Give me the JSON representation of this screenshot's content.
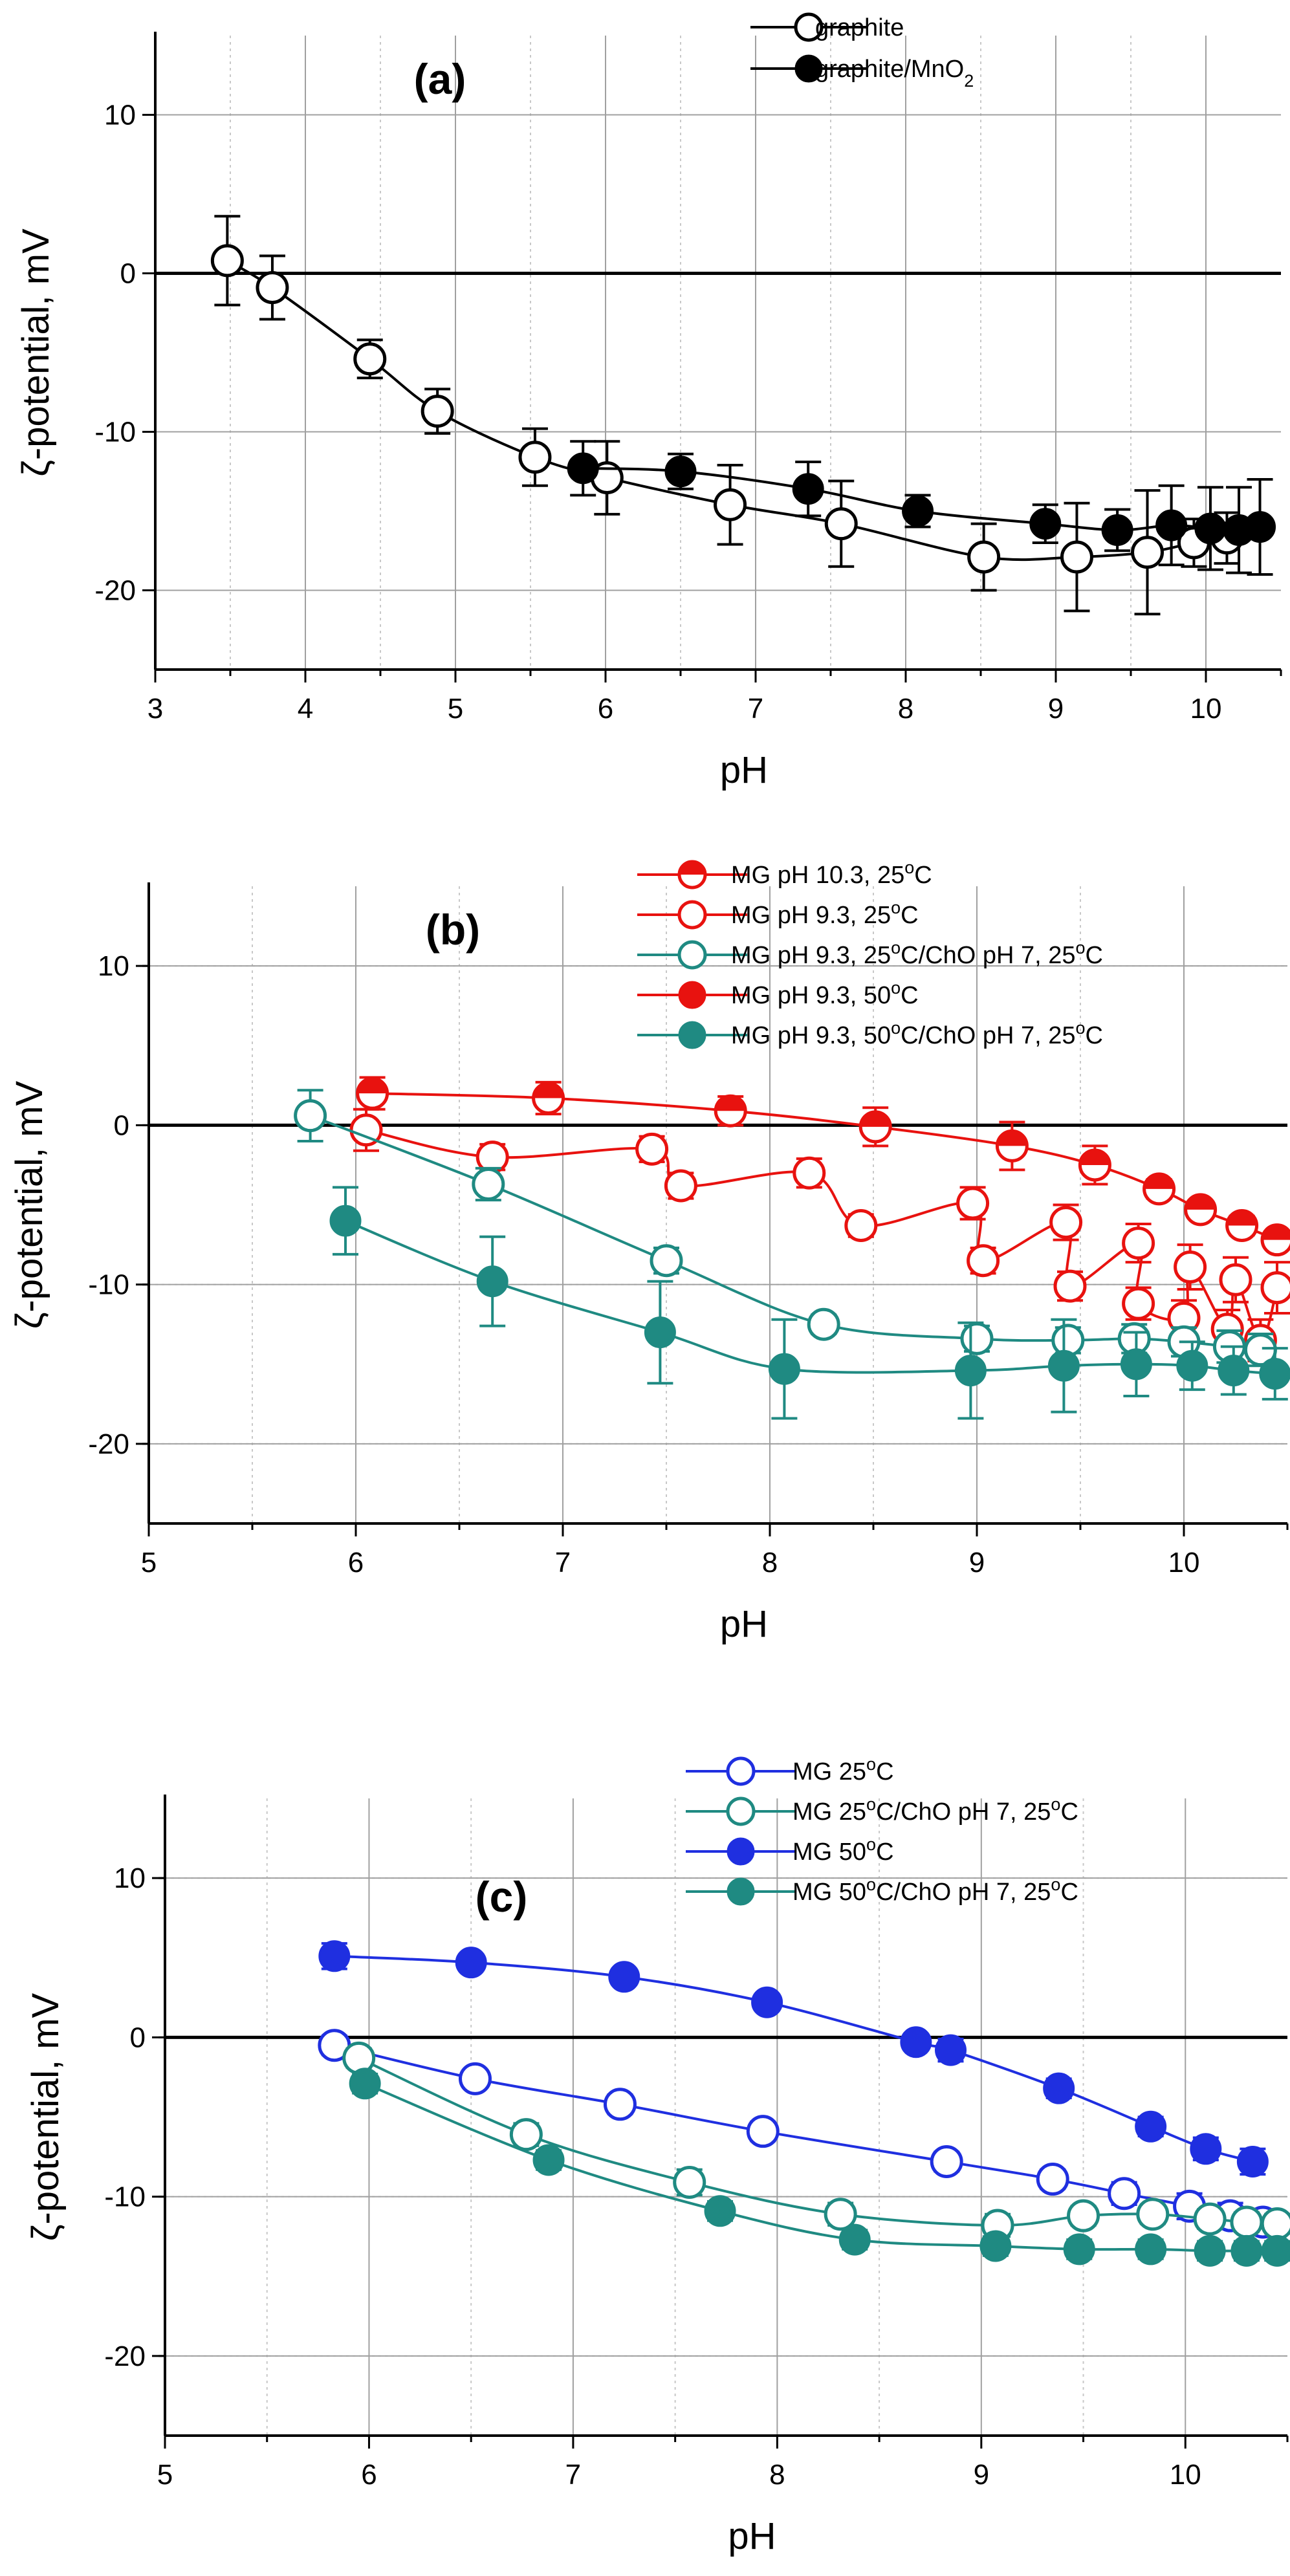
{
  "chart_data": [
    {
      "id": "a",
      "type": "scatter",
      "title": "(a)",
      "xlabel": "pH",
      "ylabel": "ζ-potential, mV",
      "xlim": [
        3,
        10.5
      ],
      "ylim": [
        -25,
        15
      ],
      "xticks": [
        3,
        4,
        5,
        6,
        7,
        8,
        9,
        10
      ],
      "xtick_labels": [
        "3",
        "4",
        "5",
        "6",
        "7",
        "8",
        "9",
        "10"
      ],
      "yticks": [
        -20,
        -10,
        0,
        10
      ],
      "ytick_labels": [
        "-20",
        "-10",
        "0",
        "10"
      ],
      "grid": true,
      "legend_position": "top-center",
      "series": [
        {
          "name": "graphite",
          "legend_main": "graphite",
          "legend_sub": "",
          "color": "#000000",
          "fill": "open",
          "points": [
            {
              "x": 3.48,
              "y": 0.8,
              "err": 2.8
            },
            {
              "x": 3.78,
              "y": -0.9,
              "err": 2.0
            },
            {
              "x": 4.43,
              "y": -5.4,
              "err": 1.2
            },
            {
              "x": 4.88,
              "y": -8.7,
              "err": 1.4
            },
            {
              "x": 5.53,
              "y": -11.6,
              "err": 1.8
            },
            {
              "x": 6.01,
              "y": -12.9,
              "err": 2.3
            },
            {
              "x": 6.83,
              "y": -14.6,
              "err": 2.5
            },
            {
              "x": 7.57,
              "y": -15.8,
              "err": 2.7
            },
            {
              "x": 8.52,
              "y": -17.9,
              "err": 2.1
            },
            {
              "x": 9.14,
              "y": -17.9,
              "err": 3.4
            },
            {
              "x": 9.61,
              "y": -17.6,
              "err": 3.9
            },
            {
              "x": 9.92,
              "y": -17.0,
              "err": 1.5
            },
            {
              "x": 10.14,
              "y": -16.7,
              "err": 1.6
            }
          ]
        },
        {
          "name": "graphite/MnO2",
          "legend_main": "graphite/MnO",
          "legend_sub": "2",
          "color": "#000000",
          "fill": "solid",
          "points": [
            {
              "x": 5.85,
              "y": -12.3,
              "err": 1.7
            },
            {
              "x": 6.5,
              "y": -12.5,
              "err": 1.1
            },
            {
              "x": 7.35,
              "y": -13.6,
              "err": 1.7
            },
            {
              "x": 8.08,
              "y": -15.0,
              "err": 1.0
            },
            {
              "x": 8.93,
              "y": -15.8,
              "err": 1.2
            },
            {
              "x": 9.41,
              "y": -16.2,
              "err": 1.3
            },
            {
              "x": 9.77,
              "y": -15.9,
              "err": 2.5
            },
            {
              "x": 10.03,
              "y": -16.1,
              "err": 2.6
            },
            {
              "x": 10.22,
              "y": -16.2,
              "err": 2.7
            },
            {
              "x": 10.36,
              "y": -16.0,
              "err": 3.0
            }
          ]
        }
      ]
    },
    {
      "id": "b",
      "type": "scatter",
      "title": "(b)",
      "xlabel": "pH",
      "ylabel": "ζ-potential, mV",
      "xlim": [
        5,
        10.5
      ],
      "ylim": [
        -25,
        15
      ],
      "xticks": [
        5,
        6,
        7,
        8,
        9,
        10
      ],
      "xtick_labels": [
        "5",
        "6",
        "7",
        "8",
        "9",
        "10"
      ],
      "yticks": [
        -20,
        -10,
        0,
        10
      ],
      "ytick_labels": [
        "-20",
        "-10",
        "0",
        "10"
      ],
      "grid": true,
      "legend_position": "top-center",
      "series": [
        {
          "name": "MG pH 10.3, 25°C",
          "legend_main": "MG pH 10.3, 25",
          "legend_sup": "o",
          "legend_tail": "C",
          "color": "#e8120f",
          "fill": "half",
          "points": [
            {
              "x": 6.08,
              "y": 2.0,
              "err": 1.0
            },
            {
              "x": 6.93,
              "y": 1.7,
              "err": 1.0
            },
            {
              "x": 7.81,
              "y": 0.9,
              "err": 0.9
            },
            {
              "x": 8.51,
              "y": -0.1,
              "err": 1.2
            },
            {
              "x": 9.17,
              "y": -1.3,
              "err": 1.5
            },
            {
              "x": 9.57,
              "y": -2.5,
              "err": 1.2
            },
            {
              "x": 9.88,
              "y": -4.0,
              "err": 0.6
            },
            {
              "x": 10.08,
              "y": -5.3,
              "err": 0.5
            },
            {
              "x": 10.28,
              "y": -6.3,
              "err": 0.6
            },
            {
              "x": 10.45,
              "y": -7.2,
              "err": 0.5
            }
          ]
        },
        {
          "name": "MG pH 9.3, 25°C",
          "legend_main": "MG pH 9.3, 25",
          "legend_sup": "o",
          "legend_tail": "C",
          "color": "#e8120f",
          "fill": "open",
          "points": [
            {
              "x": 6.05,
              "y": -0.3,
              "err": 1.3
            },
            {
              "x": 6.66,
              "y": -2.0,
              "err": 0.8
            },
            {
              "x": 7.43,
              "y": -1.5,
              "err": 0.8
            },
            {
              "x": 8.19,
              "y": -3.0,
              "err": 0.9
            },
            {
              "x": 8.98,
              "y": -4.9,
              "err": 1.0
            },
            {
              "x": 9.43,
              "y": -6.1,
              "err": 1.1
            },
            {
              "x": 9.78,
              "y": -7.4,
              "err": 1.2
            },
            {
              "x": 10.03,
              "y": -8.9,
              "err": 1.4
            },
            {
              "x": 10.25,
              "y": -9.7,
              "err": 1.4
            },
            {
              "x": 10.45,
              "y": -10.2,
              "err": 1.6
            },
            {
              "x": 7.57,
              "y": -3.8,
              "err": 0.8
            },
            {
              "x": 8.44,
              "y": -6.3,
              "err": 0.7
            },
            {
              "x": 9.03,
              "y": -8.5,
              "err": 0.8
            },
            {
              "x": 9.45,
              "y": -10.1,
              "err": 0.9
            },
            {
              "x": 9.78,
              "y": -11.2,
              "err": 1.0
            },
            {
              "x": 10.0,
              "y": -12.1,
              "err": 1.1
            },
            {
              "x": 10.21,
              "y": -12.8,
              "err": 1.2
            },
            {
              "x": 10.37,
              "y": -13.5,
              "err": 1.3
            }
          ]
        },
        {
          "name": "MG pH 9.3, 25°C/ChO pH 7, 25°C",
          "legend_main": "MG pH 9.3, 25",
          "legend_sup": "o",
          "legend_tail": "C/ChO pH 7, 25",
          "legend_sup2": "o",
          "legend_tail2": "C",
          "color": "#1f8a82",
          "fill": "open",
          "points": [
            {
              "x": 5.78,
              "y": 0.6,
              "err": 1.6
            },
            {
              "x": 6.64,
              "y": -3.7,
              "err": 1.0
            },
            {
              "x": 7.5,
              "y": -8.5,
              "err": 0.8
            },
            {
              "x": 8.26,
              "y": -12.5,
              "err": 0.6
            },
            {
              "x": 9.0,
              "y": -13.4,
              "err": 0.8
            },
            {
              "x": 9.44,
              "y": -13.5,
              "err": 0.8
            },
            {
              "x": 9.76,
              "y": -13.4,
              "err": 0.9
            },
            {
              "x": 10.0,
              "y": -13.6,
              "err": 0.9
            },
            {
              "x": 10.22,
              "y": -13.9,
              "err": 1.0
            },
            {
              "x": 10.37,
              "y": -14.1,
              "err": 1.0
            }
          ]
        },
        {
          "name": "MG pH 9.3, 50°C",
          "legend_main": "MG pH 9.3, 50",
          "legend_sup": "o",
          "legend_tail": "C",
          "color": "#e8120f",
          "fill": "solid",
          "points": []
        },
        {
          "name": "MG pH 9.3, 50°C/ChO pH 7, 25°C",
          "legend_main": "MG pH 9.3, 50",
          "legend_sup": "o",
          "legend_tail": "C/ChO pH 7, 25",
          "legend_sup2": "o",
          "legend_tail2": "C",
          "color": "#1f8a82",
          "fill": "solid",
          "points": [
            {
              "x": 5.95,
              "y": -6.0,
              "err": 2.1
            },
            {
              "x": 6.66,
              "y": -9.8,
              "err": 2.8
            },
            {
              "x": 7.47,
              "y": -13.0,
              "err": 3.2
            },
            {
              "x": 8.07,
              "y": -15.3,
              "err": 3.1
            },
            {
              "x": 8.97,
              "y": -15.4,
              "err": 3.0
            },
            {
              "x": 9.42,
              "y": -15.1,
              "err": 2.9
            },
            {
              "x": 9.77,
              "y": -15.0,
              "err": 2.0
            },
            {
              "x": 10.04,
              "y": -15.1,
              "err": 1.5
            },
            {
              "x": 10.24,
              "y": -15.4,
              "err": 1.5
            },
            {
              "x": 10.44,
              "y": -15.6,
              "err": 1.6
            }
          ]
        }
      ]
    },
    {
      "id": "c",
      "type": "scatter",
      "title": "(c)",
      "xlabel": "pH",
      "ylabel": "ζ-potential, mV",
      "xlim": [
        5,
        10.5
      ],
      "ylim": [
        -25,
        15
      ],
      "xticks": [
        5,
        6,
        7,
        8,
        9,
        10
      ],
      "xtick_labels": [
        "5",
        "6",
        "7",
        "8",
        "9",
        "10"
      ],
      "yticks": [
        -20,
        -10,
        0,
        10
      ],
      "ytick_labels": [
        "-20",
        "-10",
        "0",
        "10"
      ],
      "grid": true,
      "legend_position": "top-center",
      "series": [
        {
          "name": "MG 25°C",
          "legend_main": "MG 25",
          "legend_sup": "o",
          "legend_tail": "C",
          "color": "#1f2fe0",
          "fill": "open",
          "points": [
            {
              "x": 5.83,
              "y": -0.5,
              "err": 0.6
            },
            {
              "x": 6.52,
              "y": -2.6,
              "err": 0.5
            },
            {
              "x": 7.23,
              "y": -4.2,
              "err": 0.6
            },
            {
              "x": 7.93,
              "y": -5.9,
              "err": 0.6
            },
            {
              "x": 8.83,
              "y": -7.8,
              "err": 0.6
            },
            {
              "x": 9.35,
              "y": -8.9,
              "err": 0.6
            },
            {
              "x": 9.7,
              "y": -9.8,
              "err": 0.7
            },
            {
              "x": 10.02,
              "y": -10.6,
              "err": 0.8
            },
            {
              "x": 10.22,
              "y": -11.2,
              "err": 0.8
            },
            {
              "x": 10.38,
              "y": -11.6,
              "err": 0.8
            }
          ]
        },
        {
          "name": "MG 25°C/ChO pH 7, 25°C",
          "legend_main": "MG 25",
          "legend_sup": "o",
          "legend_tail": "C/ChO pH 7, 25",
          "legend_sup2": "o",
          "legend_tail2": "C",
          "color": "#1f8a82",
          "fill": "open",
          "points": [
            {
              "x": 5.95,
              "y": -1.3,
              "err": 0.6
            },
            {
              "x": 6.77,
              "y": -6.1,
              "err": 0.7
            },
            {
              "x": 7.57,
              "y": -9.1,
              "err": 0.8
            },
            {
              "x": 8.31,
              "y": -11.1,
              "err": 0.7
            },
            {
              "x": 9.08,
              "y": -11.8,
              "err": 0.7
            },
            {
              "x": 9.5,
              "y": -11.2,
              "err": 0.6
            },
            {
              "x": 9.84,
              "y": -11.1,
              "err": 0.6
            },
            {
              "x": 10.12,
              "y": -11.4,
              "err": 0.6
            },
            {
              "x": 10.3,
              "y": -11.6,
              "err": 0.6
            },
            {
              "x": 10.45,
              "y": -11.7,
              "err": 0.6
            }
          ]
        },
        {
          "name": "MG 50°C",
          "legend_main": "MG 50",
          "legend_sup": "o",
          "legend_tail": "C",
          "color": "#1f2fe0",
          "fill": "solid",
          "points": [
            {
              "x": 5.83,
              "y": 5.1,
              "err": 0.8
            },
            {
              "x": 6.5,
              "y": 4.7,
              "err": 0.5
            },
            {
              "x": 7.25,
              "y": 3.8,
              "err": 0.5
            },
            {
              "x": 7.95,
              "y": 2.2,
              "err": 0.5
            },
            {
              "x": 8.68,
              "y": -0.3,
              "err": 0.5
            },
            {
              "x": 8.85,
              "y": -0.8,
              "err": 0.7
            },
            {
              "x": 9.38,
              "y": -3.2,
              "err": 0.6
            },
            {
              "x": 9.83,
              "y": -5.6,
              "err": 0.6
            },
            {
              "x": 10.1,
              "y": -7.0,
              "err": 0.7
            },
            {
              "x": 10.33,
              "y": -7.8,
              "err": 0.8
            }
          ]
        },
        {
          "name": "MG 50°C/ChO pH 7, 25°C",
          "legend_main": "MG 50",
          "legend_sup": "o",
          "legend_tail": "C/ChO pH 7, 25",
          "legend_sup2": "o",
          "legend_tail2": "C",
          "color": "#1f8a82",
          "fill": "solid",
          "points": [
            {
              "x": 5.98,
              "y": -2.9,
              "err": 0.6
            },
            {
              "x": 6.88,
              "y": -7.7,
              "err": 0.6
            },
            {
              "x": 7.72,
              "y": -10.9,
              "err": 0.6
            },
            {
              "x": 8.38,
              "y": -12.7,
              "err": 0.6
            },
            {
              "x": 9.07,
              "y": -13.1,
              "err": 0.6
            },
            {
              "x": 9.48,
              "y": -13.3,
              "err": 0.6
            },
            {
              "x": 9.83,
              "y": -13.3,
              "err": 0.6
            },
            {
              "x": 10.12,
              "y": -13.4,
              "err": 0.6
            },
            {
              "x": 10.3,
              "y": -13.4,
              "err": 0.6
            },
            {
              "x": 10.45,
              "y": -13.4,
              "err": 0.6
            }
          ]
        }
      ]
    }
  ]
}
